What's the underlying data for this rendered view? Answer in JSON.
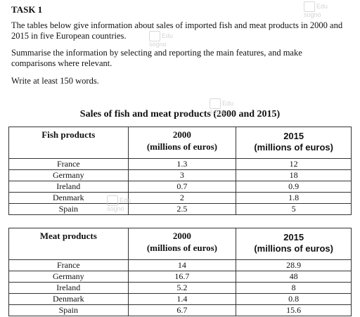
{
  "task": {
    "heading": "TASK 1"
  },
  "instructions": {
    "line1": "The tables below give information about sales of imported fish and meat products in 2000 and 2015 in five European countries.",
    "line2": "Summarise the information by selecting and reporting the main features, and make comparisons where relevant.",
    "line3": "Write at least 150 words."
  },
  "figure_title": "Sales of fish and meat products (2000 and 2015)",
  "fish_table": {
    "headers": [
      "Fish products",
      "2000",
      "(millions of euros)",
      "2015",
      "(millions of euros)"
    ],
    "rows": [
      [
        "France",
        "1.3",
        "12"
      ],
      [
        "Germany",
        "3",
        "18"
      ],
      [
        "Ireland",
        "0.7",
        "0.9"
      ],
      [
        "Denmark",
        "2",
        "1.8"
      ],
      [
        "Spain",
        "2.5",
        "5"
      ]
    ]
  },
  "meat_table": {
    "headers": [
      "Meat products",
      "2000",
      "(millions of euros)",
      "2015",
      "(millions of euros)"
    ],
    "rows": [
      [
        "France",
        "14",
        "28.9"
      ],
      [
        "Germany",
        "16.7",
        "48"
      ],
      [
        "Ireland",
        "5.2",
        "8"
      ],
      [
        "Denmark",
        "1.4",
        "0.8"
      ],
      [
        "Spain",
        "6.7",
        "15.6"
      ]
    ]
  },
  "watermark": {
    "text1": "Edu",
    "text2": "sogno"
  }
}
